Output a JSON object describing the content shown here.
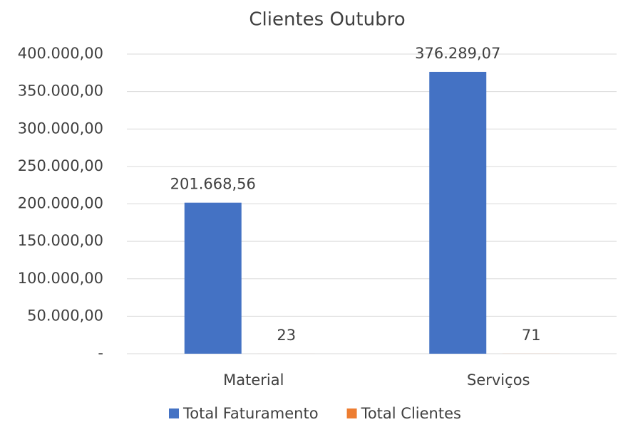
{
  "chart_data": {
    "type": "bar",
    "title": "Clientes Outubro",
    "categories": [
      "Material",
      "Serviços"
    ],
    "series": [
      {
        "name": "Total Faturamento",
        "color": "#4472c4",
        "values": [
          201668.56,
          376289.07
        ],
        "value_labels": [
          "201.668,56",
          "376.289,07"
        ]
      },
      {
        "name": "Total Clientes",
        "color": "#ed7d31",
        "values": [
          23,
          71
        ]
      }
    ],
    "ylim": [
      0,
      400000
    ],
    "yticks": [
      {
        "value": 0,
        "label": "-"
      },
      {
        "value": 50000,
        "label": "50.000,00"
      },
      {
        "value": 100000,
        "label": "100.000,00"
      },
      {
        "value": 150000,
        "label": "150.000,00"
      },
      {
        "value": 200000,
        "label": "200.000,00"
      },
      {
        "value": 250000,
        "label": "250.000,00"
      },
      {
        "value": 300000,
        "label": "300.000,00"
      },
      {
        "value": 350000,
        "label": "350.000,00"
      },
      {
        "value": 400000,
        "label": "400.000,00"
      }
    ],
    "grid": true,
    "legend": "bottom"
  }
}
